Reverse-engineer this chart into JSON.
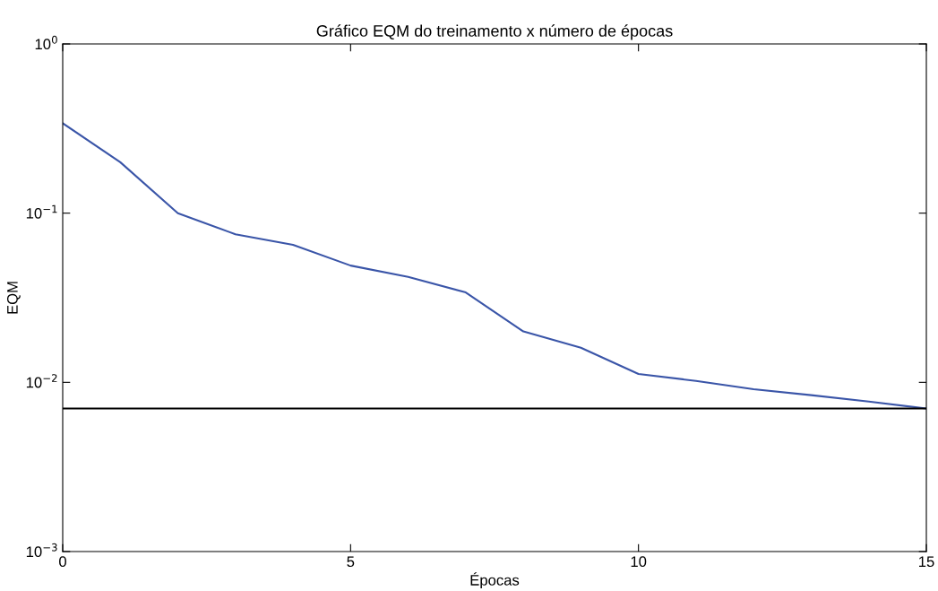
{
  "chart_data": {
    "type": "line",
    "title": "Gráfico EQM do treinamento x número de épocas",
    "xlabel": "Épocas",
    "ylabel": "EQM",
    "x": [
      0,
      1,
      2,
      3,
      4,
      5,
      6,
      7,
      8,
      9,
      10,
      11,
      12,
      13,
      14,
      15
    ],
    "series": [
      {
        "color": "#3a55a8",
        "values": [
          0.34,
          0.2,
          0.1,
          0.075,
          0.065,
          0.049,
          0.042,
          0.034,
          0.02,
          0.016,
          0.0112,
          0.0102,
          0.0091,
          0.0084,
          0.0077,
          0.007
        ]
      }
    ],
    "log": "y",
    "xlim": [
      0,
      15
    ],
    "ylim": [
      0.001,
      1
    ],
    "xticks": [
      0,
      5,
      10,
      15
    ],
    "yticks": [
      {
        "value": 0.001,
        "label": "10$^{−3}$"
      },
      {
        "value": 0.01,
        "label": "10$^{−2}$"
      },
      {
        "value": 0.1,
        "label": "10$^{−1}$"
      },
      {
        "value": 1,
        "label": "10$^{0}$"
      }
    ],
    "ref_lines": [
      {
        "axis": "y",
        "value": 0.007,
        "color": "#000000",
        "line_style": "solid"
      }
    ],
    "grid": false,
    "legend": false,
    "marker": "none",
    "line_style": "solid"
  }
}
